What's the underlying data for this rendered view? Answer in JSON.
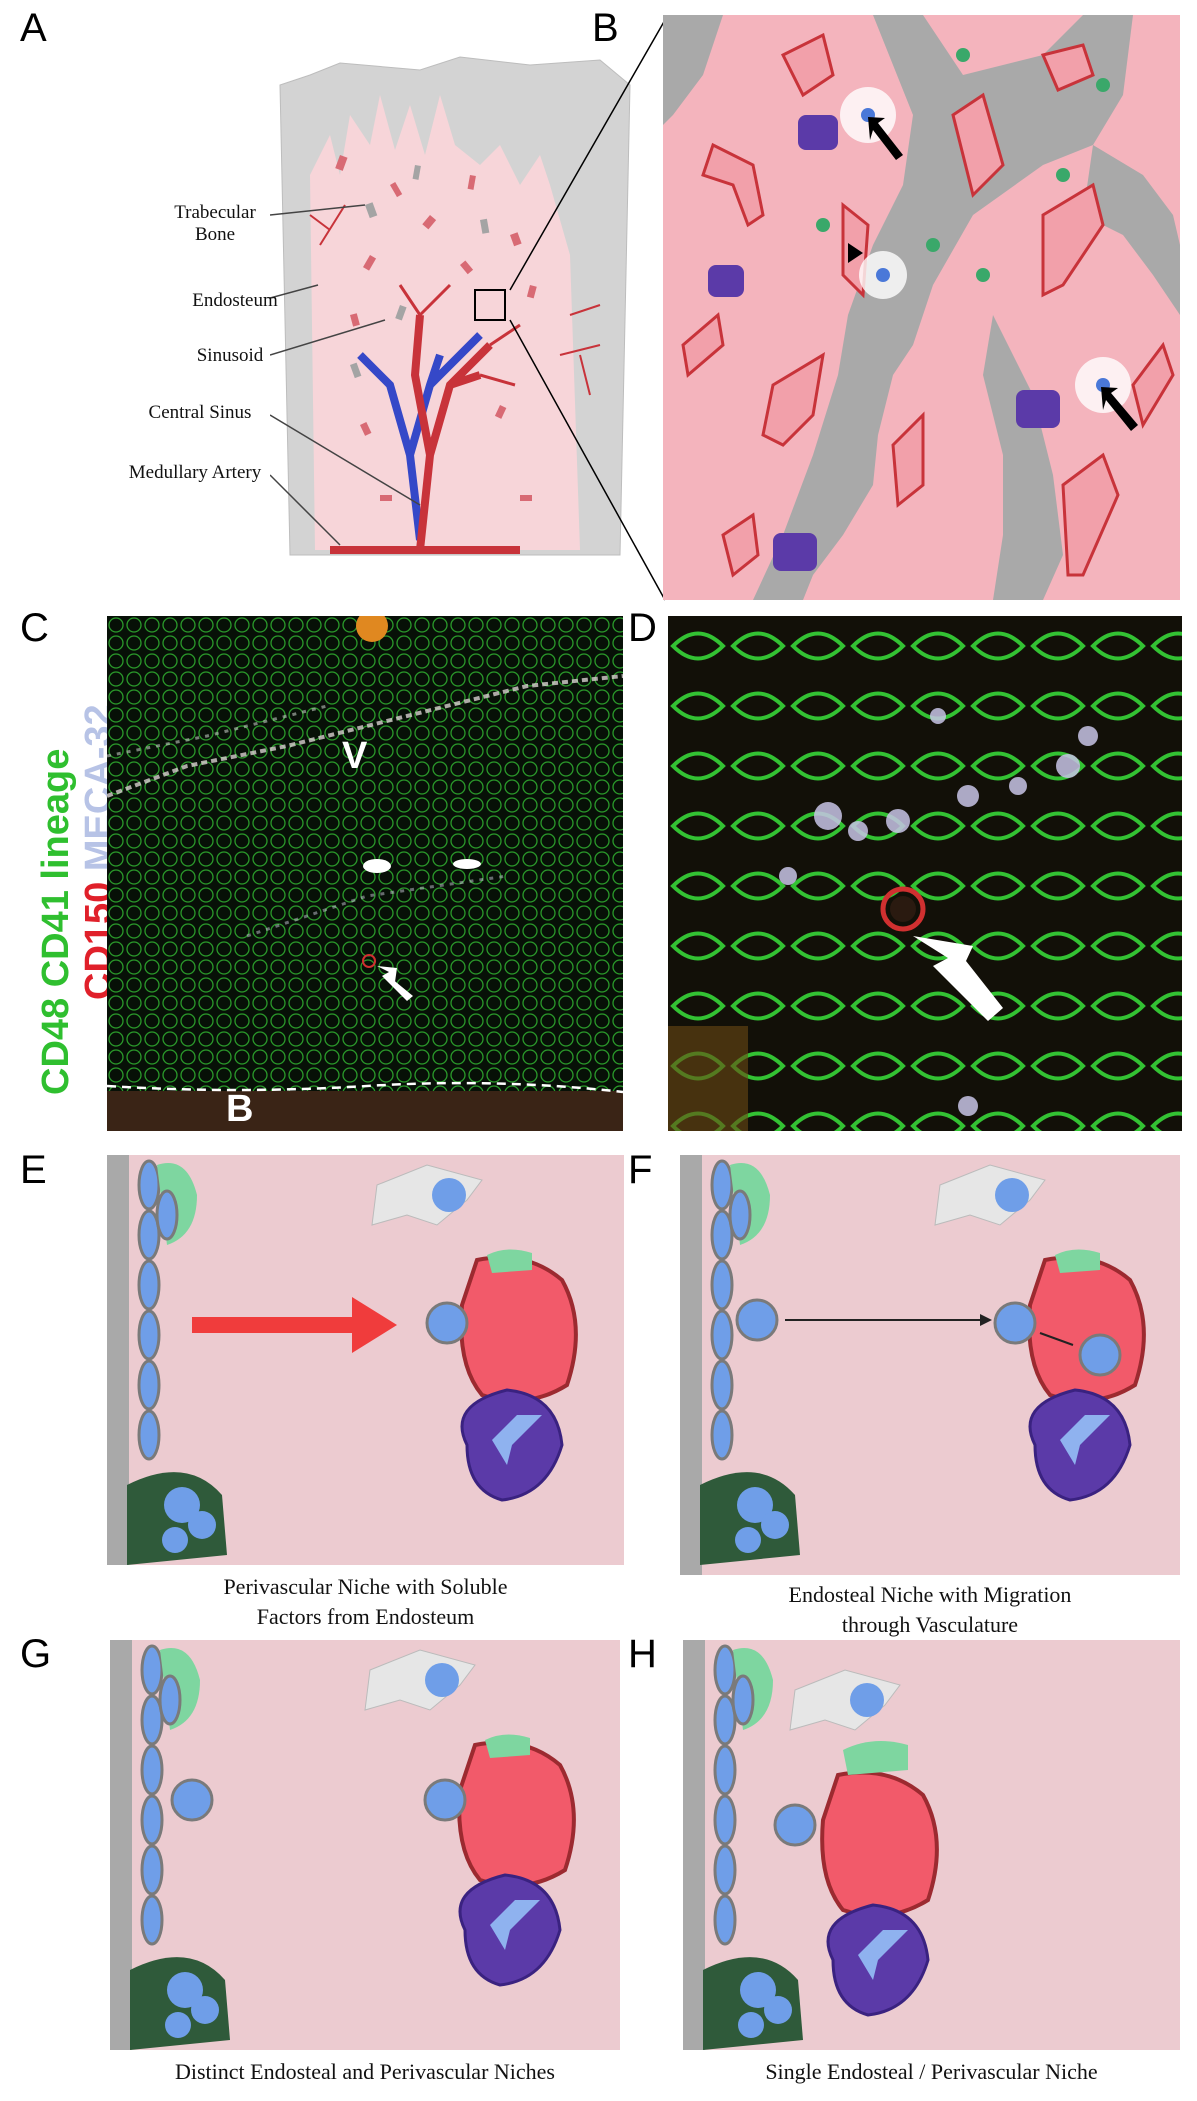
{
  "panels": {
    "a": {
      "letter": "A",
      "labels": {
        "trabecular_bone": "Trabecular\nBone",
        "endosteum": "Endosteum",
        "sinusoid": "Sinusoid",
        "central_sinus": "Central Sinus",
        "medullary_artery": "Medullary Artery"
      }
    },
    "b": {
      "letter": "B"
    },
    "c": {
      "letter": "C",
      "v_label": "V",
      "b_label": "B"
    },
    "d": {
      "letter": "D"
    },
    "e": {
      "letter": "E",
      "caption": "Perivascular Niche with Soluble\nFactors from Endosteum"
    },
    "f": {
      "letter": "F",
      "caption": "Endosteal Niche with Migration\nthrough Vasculature"
    },
    "g": {
      "letter": "G",
      "caption": "Distinct Endosteal and Perivascular Niches"
    },
    "h": {
      "letter": "H",
      "caption": "Single Endosteal / Perivascular Niche"
    }
  },
  "stain_legend": {
    "cd48": "CD48",
    "cd41": "CD41",
    "lineage": "lineage",
    "cd150": "CD150",
    "meca32": "MECA-32"
  },
  "colors": {
    "marrow_pink": "#f4b4bd",
    "bone_gray": "#a9a9a9",
    "schematic_bg": "#eccbd0",
    "sinusoid_red": "#f25a6a",
    "megakaryocyte_purple": "#5b3aa8",
    "hsc_blue": "#6f9ee8",
    "cd48_green": "#2fbf2f",
    "cd150_red": "#e0202a",
    "meca32_lavender": "#b7c3e6"
  }
}
